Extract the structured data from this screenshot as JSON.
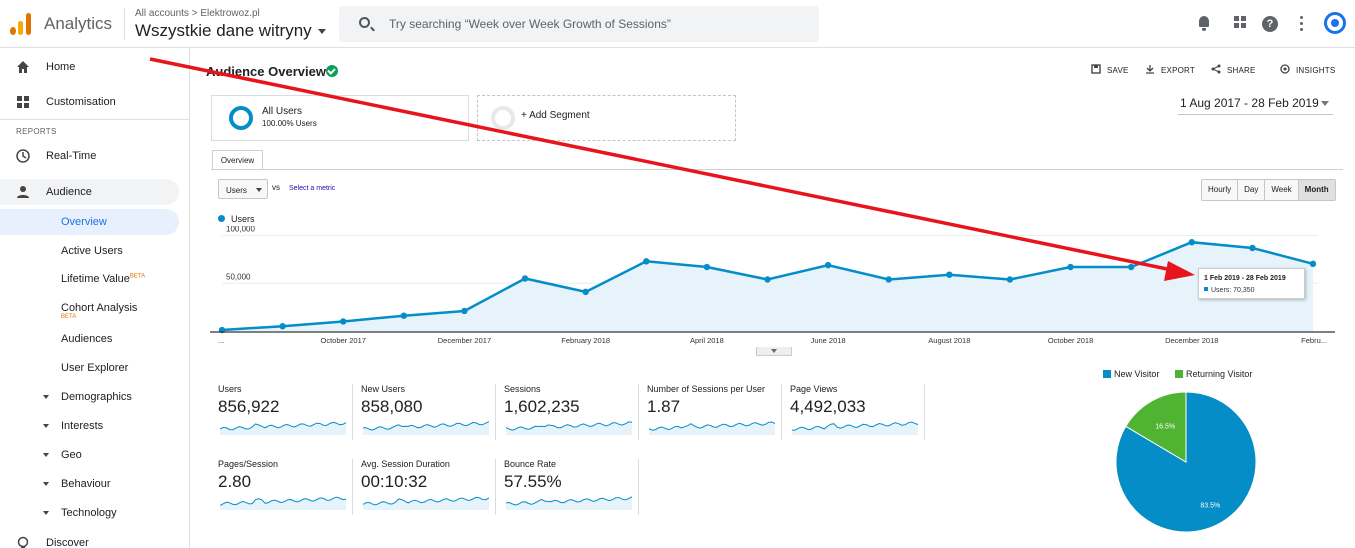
{
  "app": {
    "title": "Analytics"
  },
  "account": {
    "path": "All accounts > Elektrowoz.pl",
    "name": "Wszystkie dane witryny"
  },
  "search": {
    "placeholder": "Try searching “Week over Week Growth of Sessions”"
  },
  "topbar_icons": [
    "bell-icon",
    "apps-grid-icon",
    "help-icon",
    "more-vert-icon",
    "account-icon"
  ],
  "sidebar": {
    "home": "Home",
    "customisation": "Customisation",
    "reports_label": "REPORTS",
    "realtime": "Real-Time",
    "audience": "Audience",
    "overview": "Overview",
    "active_users": "Active Users",
    "lifetime_value": "Lifetime Value",
    "cohort_analysis": "Cohort Analysis",
    "beta": "BETA",
    "audiences": "Audiences",
    "user_explorer": "User Explorer",
    "demographics": "Demographics",
    "interests": "Interests",
    "geo": "Geo",
    "behaviour": "Behaviour",
    "technology": "Technology",
    "discover": "Discover"
  },
  "header": {
    "title": "Audience Overview",
    "save": "SAVE",
    "export": "EXPORT",
    "share": "SHARE",
    "insights": "INSIGHTS"
  },
  "segment": {
    "name": "All Users",
    "pct": "100.00% Users",
    "add": "+ Add Segment"
  },
  "date_range": "1 Aug 2017 - 28 Feb 2019",
  "tabs": {
    "overview": "Overview"
  },
  "controls": {
    "metric": "Users",
    "vs": "vs",
    "select_metric": "Select a metric",
    "granularity": [
      "Hourly",
      "Day",
      "Week",
      "Month"
    ],
    "active_granularity": "Month"
  },
  "chart_data": {
    "type": "line",
    "series_name": "Users",
    "color": "#058dc7",
    "x": [
      "Aug 2017",
      "Sep 2017",
      "Oct 2017",
      "Nov 2017",
      "Dec 2017",
      "Jan 2018",
      "Feb 2018",
      "Mar 2018",
      "Apr 2018",
      "May 2018",
      "Jun 2018",
      "Jul 2018",
      "Aug 2018",
      "Sep 2018",
      "Oct 2018",
      "Nov 2018",
      "Dec 2018",
      "Jan 2019",
      "Feb 2019"
    ],
    "values": [
      1000,
      5000,
      10000,
      16000,
      21000,
      55000,
      41000,
      73000,
      67000,
      54000,
      69000,
      54000,
      59000,
      54000,
      67000,
      67000,
      93000,
      87000,
      70350
    ],
    "ylim": [
      0,
      110000
    ],
    "y_ticks": [
      50000,
      100000
    ],
    "y_tick_labels": [
      "50,000",
      "100,000"
    ],
    "x_ticks": [
      {
        "x": 0,
        "label": "..."
      },
      {
        "x": 2,
        "label": "October 2017"
      },
      {
        "x": 4,
        "label": "December 2017"
      },
      {
        "x": 6,
        "label": "February 2018"
      },
      {
        "x": 8,
        "label": "April 2018"
      },
      {
        "x": 10,
        "label": "June 2018"
      },
      {
        "x": 12,
        "label": "August 2018"
      },
      {
        "x": 14,
        "label": "October 2018"
      },
      {
        "x": 16,
        "label": "December 2018"
      },
      {
        "x": 18,
        "label": "Febru..."
      }
    ],
    "tooltip": {
      "title": "1 Feb 2019 - 28 Feb 2019",
      "value": "Users: 70,350"
    }
  },
  "metrics": [
    {
      "label": "Users",
      "value": "856,922"
    },
    {
      "label": "New Users",
      "value": "858,080"
    },
    {
      "label": "Sessions",
      "value": "1,602,235"
    },
    {
      "label": "Number of Sessions per User",
      "value": "1.87"
    },
    {
      "label": "Page Views",
      "value": "4,492,033"
    },
    {
      "label": "Pages/Session",
      "value": "2.80"
    },
    {
      "label": "Avg. Session Duration",
      "value": "00:10:32"
    },
    {
      "label": "Bounce Rate",
      "value": "57.55%"
    }
  ],
  "pie_data": {
    "type": "pie",
    "slices": [
      {
        "name": "New Visitor",
        "value": 83.5,
        "label": "83.5%",
        "color": "#058dc7"
      },
      {
        "name": "Returning Visitor",
        "value": 16.5,
        "label": "16.5%",
        "color": "#50b432"
      }
    ]
  },
  "annotation": {
    "color": "#e8141b"
  }
}
